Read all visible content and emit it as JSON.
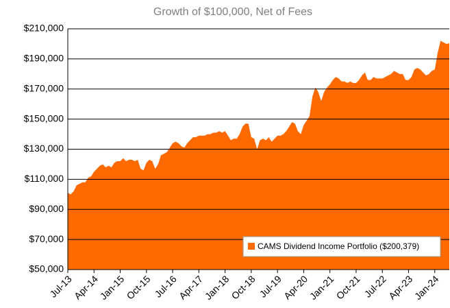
{
  "chart_data": {
    "type": "area",
    "title": "Growth of $100,000, Net of Fees",
    "categories": [
      "Jul-13",
      null,
      null,
      null,
      null,
      null,
      null,
      null,
      null,
      "Apr-14",
      null,
      null,
      null,
      null,
      null,
      null,
      null,
      null,
      "Jan-15",
      null,
      null,
      null,
      null,
      null,
      null,
      null,
      null,
      "Oct-15",
      null,
      null,
      null,
      null,
      null,
      null,
      null,
      null,
      "Jul-16",
      null,
      null,
      null,
      null,
      null,
      null,
      null,
      null,
      "Apr-17",
      null,
      null,
      null,
      null,
      null,
      null,
      null,
      null,
      "Jan-18",
      null,
      null,
      null,
      null,
      null,
      null,
      null,
      null,
      "Oct-18",
      null,
      null,
      null,
      null,
      null,
      null,
      null,
      null,
      "Jul-19",
      null,
      null,
      null,
      null,
      null,
      null,
      null,
      null,
      "Apr-20",
      null,
      null,
      null,
      null,
      null,
      null,
      null,
      null,
      "Jan-21",
      null,
      null,
      null,
      null,
      null,
      null,
      null,
      null,
      "Oct-21",
      null,
      null,
      null,
      null,
      null,
      null,
      null,
      null,
      "Jul-22",
      null,
      null,
      null,
      null,
      null,
      null,
      null,
      null,
      "Apr-23",
      null,
      null,
      null,
      null,
      null,
      null,
      null,
      null,
      "Jan-24",
      null,
      null,
      null,
      null,
      null
    ],
    "series": [
      {
        "name": "CAMS Dividend Income Portfolio ($200,379)",
        "color": "#ff6a00",
        "values": [
          101000,
          100000,
          102000,
          106000,
          107000,
          108000,
          108000,
          111000,
          112000,
          115000,
          117000,
          119000,
          120000,
          118000,
          119000,
          118000,
          121000,
          122000,
          122000,
          124000,
          122000,
          123000,
          123000,
          122000,
          123000,
          117000,
          116000,
          121000,
          123000,
          122000,
          117000,
          120000,
          126000,
          127000,
          128000,
          131000,
          134000,
          135000,
          134000,
          132000,
          131000,
          134000,
          136000,
          138000,
          138000,
          139000,
          139000,
          139000,
          140000,
          140000,
          141000,
          141000,
          142000,
          141000,
          142000,
          139000,
          136000,
          137000,
          137000,
          140000,
          145000,
          147000,
          147000,
          138000,
          137000,
          130000,
          136000,
          137000,
          136000,
          138000,
          135000,
          137000,
          139000,
          139000,
          140000,
          142000,
          145000,
          148000,
          147000,
          142000,
          140000,
          146000,
          149000,
          152000,
          165000,
          171000,
          168000,
          162000,
          168000,
          171000,
          173000,
          176000,
          178000,
          177000,
          175000,
          175000,
          174000,
          175000,
          174000,
          174000,
          176000,
          179000,
          181000,
          176000,
          176000,
          178000,
          177000,
          177000,
          177000,
          178000,
          179000,
          180000,
          182000,
          181000,
          180000,
          180000,
          176000,
          176000,
          178000,
          183000,
          184000,
          183000,
          181000,
          179000,
          180000,
          182000,
          183000,
          194000,
          202000,
          201000,
          200000,
          200379
        ]
      }
    ],
    "ylim": [
      50000,
      210000
    ],
    "yticks": [
      {
        "value": 50000,
        "label": "$50,000"
      },
      {
        "value": 70000,
        "label": "$70,000"
      },
      {
        "value": 90000,
        "label": "$90,000"
      },
      {
        "value": 110000,
        "label": "$110,000"
      },
      {
        "value": 130000,
        "label": "$130,000"
      },
      {
        "value": 150000,
        "label": "$150,000"
      },
      {
        "value": 170000,
        "label": "$170,000"
      },
      {
        "value": 190000,
        "label": "$190,000"
      },
      {
        "value": 210000,
        "label": "$210,000"
      }
    ],
    "grid": true,
    "legend": "lower right"
  }
}
